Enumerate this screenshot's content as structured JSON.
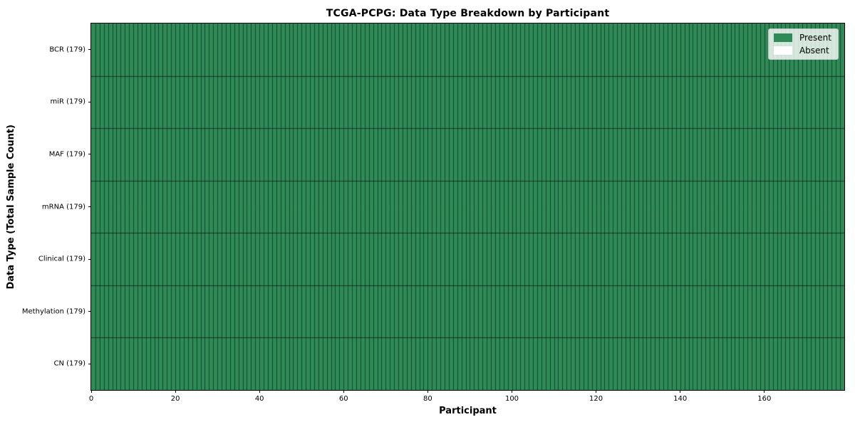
{
  "chart_data": {
    "type": "heatmap",
    "title": "TCGA-PCPG: Data Type Breakdown by Participant",
    "xlabel": "Participant",
    "ylabel": "Data Type (Total Sample Count)",
    "x_range": [
      0,
      179
    ],
    "x_ticks": [
      0,
      20,
      40,
      60,
      80,
      100,
      120,
      140,
      160
    ],
    "n_participants": 179,
    "rows": [
      {
        "label": "BCR (179)",
        "data_type": "BCR",
        "total_samples": 179,
        "present_count": 179,
        "absent_count": 0
      },
      {
        "label": "miR (179)",
        "data_type": "miR",
        "total_samples": 179,
        "present_count": 179,
        "absent_count": 0
      },
      {
        "label": "MAF (179)",
        "data_type": "MAF",
        "total_samples": 179,
        "present_count": 179,
        "absent_count": 0
      },
      {
        "label": "mRNA (179)",
        "data_type": "mRNA",
        "total_samples": 179,
        "present_count": 179,
        "absent_count": 0
      },
      {
        "label": "Clinical (179)",
        "data_type": "Clinical",
        "total_samples": 179,
        "present_count": 179,
        "absent_count": 0
      },
      {
        "label": "Methylation (179)",
        "data_type": "Methylation",
        "total_samples": 179,
        "present_count": 179,
        "absent_count": 0
      },
      {
        "label": "CN (179)",
        "data_type": "CN",
        "total_samples": 179,
        "present_count": 179,
        "absent_count": 0
      }
    ],
    "legend": {
      "position": "upper right",
      "entries": [
        {
          "label": "Present",
          "color": "#2e8b57"
        },
        {
          "label": "Absent",
          "color": "#ffffff"
        }
      ]
    },
    "grid": true,
    "colors": {
      "present": "#2e8b57",
      "absent": "#ffffff",
      "grid_line": "rgba(0,0,0,0.5)",
      "row_separator": "rgba(0,0,0,0.6)",
      "spine": "#000000"
    }
  }
}
